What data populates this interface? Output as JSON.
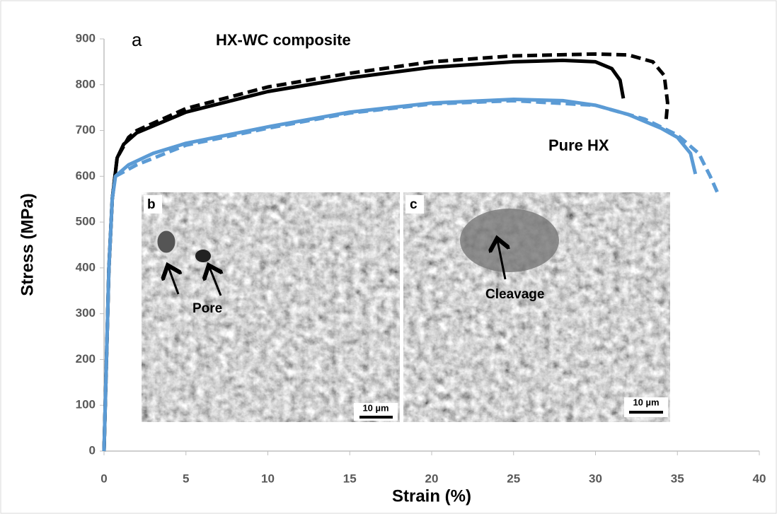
{
  "chart_data": {
    "type": "line",
    "title": "a",
    "annotations": [
      "HX-WC composite",
      "Pure HX"
    ],
    "xlabel": "Strain (%)",
    "ylabel": "Stress (MPa)",
    "xlim": [
      0,
      40
    ],
    "ylim": [
      0,
      900
    ],
    "xticks": [
      0,
      5,
      10,
      15,
      20,
      25,
      30,
      35,
      40
    ],
    "yticks": [
      0,
      100,
      200,
      300,
      400,
      500,
      600,
      700,
      800,
      900
    ],
    "grid": false,
    "series": [
      {
        "color": "#000000",
        "dash": false,
        "x": [
          0,
          0.3,
          0.5,
          0.8,
          1.2,
          2,
          5,
          10,
          15,
          20,
          25,
          28,
          30,
          31,
          31.5,
          31.7
        ],
        "values": [
          0,
          400,
          550,
          640,
          670,
          695,
          740,
          785,
          815,
          838,
          850,
          853,
          850,
          835,
          810,
          770
        ]
      },
      {
        "color": "#000000",
        "dash": true,
        "x": [
          0,
          0.3,
          0.5,
          0.8,
          1.5,
          2,
          5,
          10,
          15,
          20,
          25,
          30,
          32,
          33.5,
          34.2,
          34.4,
          34.3
        ],
        "values": [
          0,
          400,
          550,
          640,
          685,
          700,
          748,
          795,
          825,
          850,
          863,
          867,
          865,
          850,
          820,
          760,
          718
        ]
      },
      {
        "color": "#5b9bd5",
        "dash": false,
        "x": [
          0,
          0.3,
          0.5,
          0.7,
          1.5,
          3,
          5,
          10,
          15,
          20,
          25,
          28,
          30,
          32,
          34,
          35,
          35.8,
          36.1
        ],
        "values": [
          0,
          400,
          550,
          600,
          625,
          650,
          672,
          708,
          740,
          760,
          768,
          765,
          755,
          735,
          705,
          685,
          650,
          605
        ]
      },
      {
        "color": "#5b9bd5",
        "dash": true,
        "x": [
          0.7,
          2,
          5,
          10,
          15,
          20,
          25,
          30,
          33,
          35,
          36.3,
          37,
          37.5
        ],
        "values": [
          600,
          625,
          668,
          705,
          738,
          758,
          765,
          755,
          725,
          690,
          650,
          600,
          560
        ]
      }
    ],
    "insets": [
      {
        "label": "b",
        "annotation": "Pore",
        "scale_bar": "10 µm"
      },
      {
        "label": "c",
        "annotation": "Cleavage",
        "scale_bar": "10 µm"
      }
    ]
  }
}
